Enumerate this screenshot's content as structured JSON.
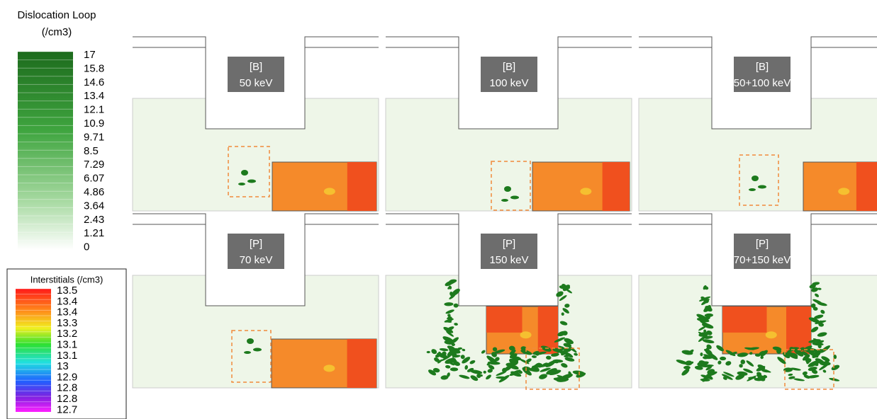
{
  "dislocation_legend": {
    "title": "Dislocation Loop",
    "unit": "(/cm3)",
    "labels": [
      "17",
      "15.8",
      "14.6",
      "13.4",
      "12.1",
      "10.9",
      "9.71",
      "8.5",
      "7.29",
      "6.07",
      "4.86",
      "3.64",
      "2.43",
      "1.21",
      "0"
    ]
  },
  "interstitial_legend": {
    "title": "Interstitials (/cm3)",
    "labels": [
      "13.5",
      "13.4",
      "13.4",
      "13.3",
      "13.2",
      "13.1",
      "13.1",
      "13",
      "12.9",
      "12.8",
      "12.8",
      "12.7"
    ]
  },
  "panels": [
    {
      "dopant": "[B]",
      "energy": "50 keV"
    },
    {
      "dopant": "[B]",
      "energy": "100 keV"
    },
    {
      "dopant": "[B]",
      "energy": "50+100 keV"
    },
    {
      "dopant": "[P]",
      "energy": "70 keV"
    },
    {
      "dopant": "[P]",
      "energy": "150 keV"
    },
    {
      "dopant": "[P]",
      "energy": "70+150 keV"
    }
  ]
}
